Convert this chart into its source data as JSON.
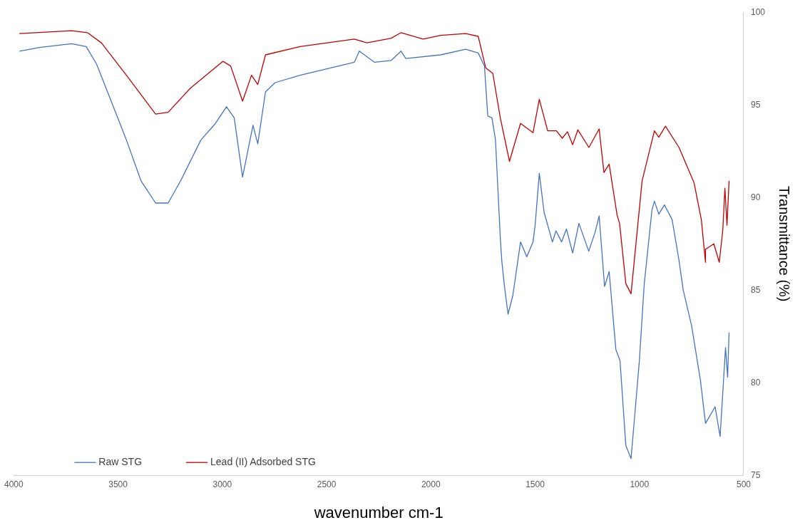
{
  "chart_data": {
    "type": "line",
    "xlabel": "wavenumber cm-1",
    "y2label": "Transmittance (%)",
    "xlim": [
      4000,
      500
    ],
    "xticks": [
      4000,
      3500,
      3000,
      2500,
      2000,
      1500,
      1000,
      500
    ],
    "y2lim": [
      75,
      100
    ],
    "y2ticks": [
      75,
      80,
      85,
      90,
      95,
      100
    ],
    "grid": false,
    "legend": "bottom left",
    "marker": "none",
    "line_style": "solid",
    "series": [
      {
        "name": "Raw STG",
        "color": "#4472c4",
        "axis": "y2",
        "x": [
          3973,
          3877,
          3723,
          3653,
          3603,
          3533,
          3460,
          3390,
          3320,
          3260,
          3200,
          3103,
          3033,
          2980,
          2943,
          2903,
          2853,
          2830,
          2793,
          2747,
          2627,
          2367,
          2343,
          2270,
          2190,
          2143,
          2120,
          1953,
          1833,
          1773,
          1743,
          1727,
          1707,
          1690,
          1667,
          1660,
          1648,
          1630,
          1607,
          1570,
          1540,
          1510,
          1500,
          1480,
          1457,
          1417,
          1400,
          1373,
          1350,
          1320,
          1290,
          1243,
          1213,
          1193,
          1167,
          1145,
          1113,
          1093,
          1065,
          1040,
          1000,
          977,
          940,
          928,
          907,
          880,
          843,
          810,
          790,
          750,
          707,
          683,
          637,
          613,
          595,
          587,
          577,
          570
        ],
        "values": [
          97.9,
          98.1,
          98.3,
          98.15,
          97.2,
          95.2,
          93.1,
          90.9,
          89.7,
          89.7,
          90.9,
          93.1,
          94.0,
          94.9,
          94.3,
          91.1,
          93.9,
          92.9,
          95.7,
          96.2,
          96.6,
          97.3,
          97.9,
          97.3,
          97.4,
          97.9,
          97.5,
          97.7,
          98.0,
          97.8,
          97.1,
          94.4,
          94.3,
          93.1,
          87.8,
          86.6,
          85.3,
          83.7,
          84.7,
          87.6,
          86.8,
          87.6,
          88.5,
          91.3,
          89.2,
          87.6,
          88.2,
          87.6,
          88.3,
          87.0,
          88.6,
          87.1,
          88.1,
          89.0,
          85.2,
          86.0,
          81.8,
          81.2,
          76.6,
          75.9,
          81.2,
          85.3,
          89.3,
          89.8,
          89.1,
          89.6,
          88.8,
          86.6,
          85.0,
          83.1,
          80.1,
          77.8,
          78.7,
          77.1,
          80.4,
          81.9,
          80.3,
          82.7
        ]
      },
      {
        "name": "Lead (II) Adsorbed STG",
        "color": "#c00000",
        "axis": "y2",
        "x": [
          3973,
          3723,
          3647,
          3580,
          3460,
          3320,
          3260,
          3153,
          2997,
          2960,
          2903,
          2860,
          2830,
          2793,
          2627,
          2367,
          2307,
          2190,
          2143,
          2037,
          1953,
          1833,
          1773,
          1737,
          1703,
          1667,
          1623,
          1570,
          1510,
          1480,
          1440,
          1398,
          1370,
          1345,
          1320,
          1295,
          1242,
          1193,
          1170,
          1145,
          1107,
          1095,
          1065,
          1040,
          987,
          928,
          907,
          875,
          810,
          738,
          703,
          683,
          683,
          643,
          617,
          600,
          590,
          580,
          570
        ],
        "values": [
          98.85,
          99.0,
          98.9,
          98.35,
          96.6,
          94.5,
          94.6,
          95.9,
          97.35,
          97.1,
          95.2,
          96.6,
          96.1,
          97.7,
          98.15,
          98.55,
          98.35,
          98.6,
          98.9,
          98.55,
          98.75,
          98.85,
          98.7,
          97.0,
          96.7,
          94.3,
          91.95,
          94.0,
          93.5,
          95.3,
          93.6,
          93.6,
          93.2,
          93.55,
          92.85,
          93.65,
          92.7,
          93.7,
          91.35,
          91.8,
          89.05,
          88.6,
          85.35,
          84.8,
          90.9,
          93.6,
          93.25,
          93.85,
          92.7,
          90.8,
          88.8,
          86.5,
          87.2,
          87.5,
          86.5,
          88.25,
          90.5,
          88.5,
          90.9
        ]
      }
    ]
  }
}
